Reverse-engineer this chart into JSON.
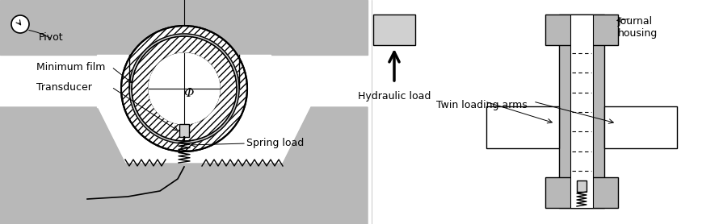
{
  "bg_color": "#ffffff",
  "gray_color": "#b8b8b8",
  "light_gray": "#d0d0d0",
  "text_color": "#000000",
  "figsize": [
    8.9,
    2.78
  ],
  "dpi": 100,
  "labels": {
    "pivot": "Pivot",
    "minimum_film": "Minimum film",
    "transducer": "Transducer",
    "spring_load": "Spring load",
    "hydraulic_load": "Hydraulic load",
    "twin_loading_arms": "Twin loading arms",
    "journal_housing": "Journal\nhousing",
    "phi": "Φ"
  }
}
